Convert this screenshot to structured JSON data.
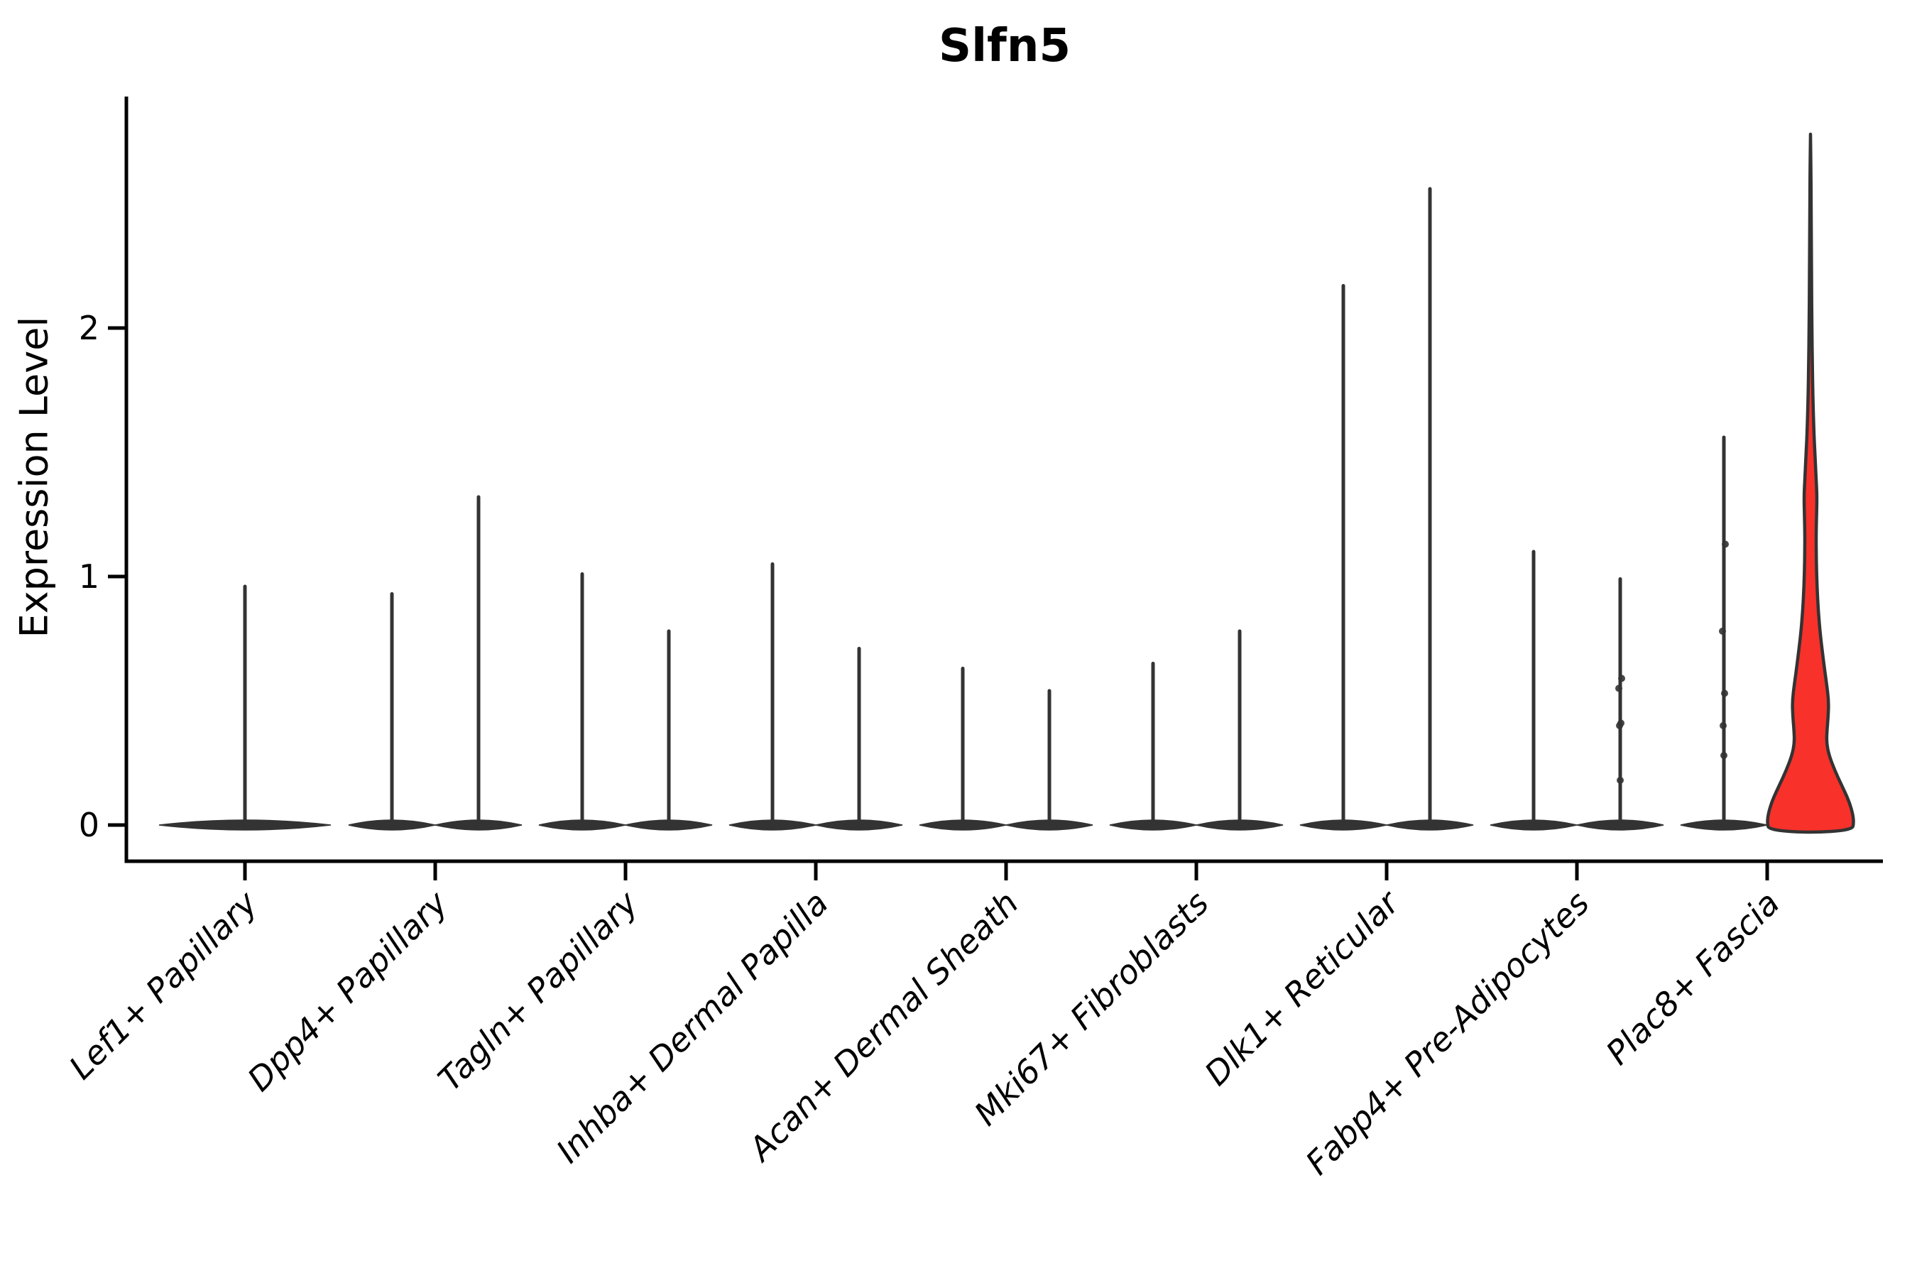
{
  "chart_data": {
    "type": "violin",
    "title": "Slfn5",
    "xlabel": "",
    "ylabel": "Expression Level",
    "yticks": [
      0,
      1,
      2
    ],
    "ylim": [
      -0.15,
      2.93
    ],
    "grid": false,
    "legend": "none",
    "categories": [
      "Lef1+ Papillary",
      "Dpp4+ Papillary",
      "Tagln+ Papillary",
      "Inhba+ Dermal Papilla",
      "Acan+ Dermal Sheath",
      "Mki67+ Fibroblasts",
      "Dlk1+ Reticular",
      "Fabp4+ Pre-Adipocytes",
      "Plac8+ Fascia"
    ],
    "violins": [
      {
        "category_index": 0,
        "slot": "center",
        "style": "needle",
        "max_value": 0.96,
        "fill": "#ffffff"
      },
      {
        "category_index": 1,
        "slot": "left",
        "style": "needle",
        "max_value": 0.93,
        "fill": "#ffffff"
      },
      {
        "category_index": 1,
        "slot": "right",
        "style": "needle",
        "max_value": 1.32,
        "fill": "#ffffff"
      },
      {
        "category_index": 2,
        "slot": "left",
        "style": "needle",
        "max_value": 1.01,
        "fill": "#ffffff"
      },
      {
        "category_index": 2,
        "slot": "right",
        "style": "needle",
        "max_value": 0.78,
        "fill": "#ffffff"
      },
      {
        "category_index": 3,
        "slot": "left",
        "style": "needle",
        "max_value": 1.05,
        "fill": "#ffffff"
      },
      {
        "category_index": 3,
        "slot": "right",
        "style": "needle",
        "max_value": 0.71,
        "fill": "#ffffff"
      },
      {
        "category_index": 4,
        "slot": "left",
        "style": "needle",
        "max_value": 0.63,
        "fill": "#ffffff"
      },
      {
        "category_index": 4,
        "slot": "right",
        "style": "needle",
        "max_value": 0.54,
        "fill": "#ffffff"
      },
      {
        "category_index": 5,
        "slot": "left",
        "style": "needle",
        "max_value": 0.65,
        "fill": "#ffffff"
      },
      {
        "category_index": 5,
        "slot": "right",
        "style": "needle",
        "max_value": 0.78,
        "fill": "#ffffff"
      },
      {
        "category_index": 6,
        "slot": "left",
        "style": "needle",
        "max_value": 2.17,
        "fill": "#ffffff"
      },
      {
        "category_index": 6,
        "slot": "right",
        "style": "needle",
        "max_value": 2.56,
        "fill": "#ffffff"
      },
      {
        "category_index": 7,
        "slot": "left",
        "style": "needle",
        "max_value": 1.1,
        "fill": "#ffffff"
      },
      {
        "category_index": 7,
        "slot": "right",
        "style": "needle",
        "max_value": 0.99,
        "fill": "#ffffff",
        "jitter_values": [
          0.59,
          0.55,
          0.41,
          0.4,
          0.18
        ]
      },
      {
        "category_index": 8,
        "slot": "left",
        "style": "needle",
        "max_value": 1.56,
        "fill": "#ffffff",
        "jitter_values": [
          1.13,
          0.78,
          0.53,
          0.4,
          0.28
        ]
      },
      {
        "category_index": 8,
        "slot": "right",
        "style": "density",
        "max_value": 2.78,
        "fill": "#f8312a",
        "profile": [
          [
            2.78,
            0.01
          ],
          [
            2.6,
            0.013
          ],
          [
            2.4,
            0.018
          ],
          [
            2.2,
            0.024
          ],
          [
            2.0,
            0.032
          ],
          [
            1.85,
            0.042
          ],
          [
            1.72,
            0.055
          ],
          [
            1.6,
            0.075
          ],
          [
            1.5,
            0.1
          ],
          [
            1.4,
            0.13
          ],
          [
            1.32,
            0.15
          ],
          [
            1.24,
            0.14
          ],
          [
            1.16,
            0.13
          ],
          [
            1.06,
            0.135
          ],
          [
            0.96,
            0.15
          ],
          [
            0.86,
            0.18
          ],
          [
            0.76,
            0.23
          ],
          [
            0.66,
            0.3
          ],
          [
            0.57,
            0.37
          ],
          [
            0.5,
            0.42
          ],
          [
            0.44,
            0.41
          ],
          [
            0.38,
            0.38
          ],
          [
            0.33,
            0.37
          ],
          [
            0.28,
            0.43
          ],
          [
            0.22,
            0.56
          ],
          [
            0.16,
            0.72
          ],
          [
            0.1,
            0.88
          ],
          [
            0.05,
            0.97
          ],
          [
            0.01,
            1.0
          ],
          [
            -0.02,
            0.96
          ]
        ]
      }
    ],
    "colors": {
      "background": "#ffffff",
      "axis": "#000000",
      "violin_stroke": "#333333",
      "needle_fill": "#ffffff",
      "highlight_fill": "#f8312a",
      "jitter_dot": "#333333"
    }
  }
}
